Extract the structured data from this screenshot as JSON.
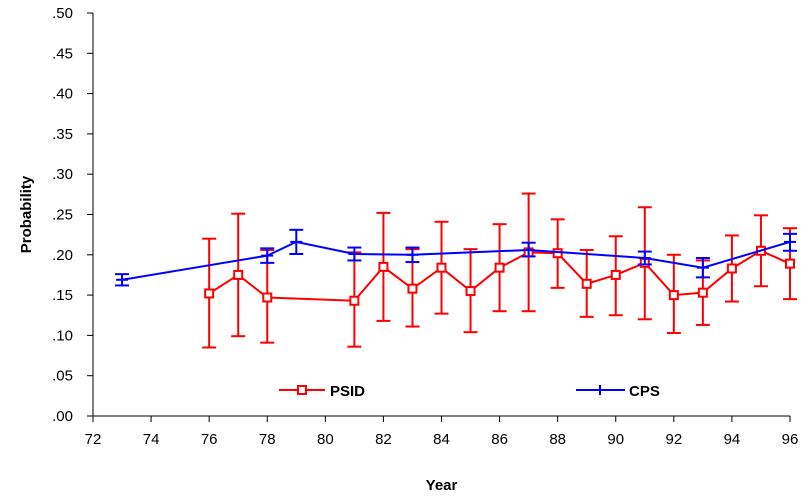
{
  "chart_data": {
    "type": "line",
    "xlabel": "Year",
    "ylabel": "Probability",
    "xlim": [
      72,
      96
    ],
    "ylim": [
      0,
      0.5
    ],
    "x_ticks": [
      "72",
      "74",
      "76",
      "78",
      "80",
      "82",
      "84",
      "86",
      "88",
      "90",
      "92",
      "94",
      "96"
    ],
    "y_ticks": [
      ".00",
      ".05",
      ".10",
      ".15",
      ".20",
      ".25",
      ".30",
      ".35",
      ".40",
      ".45",
      ".50"
    ],
    "grid": false,
    "legend_position": "bottom-inside",
    "series": [
      {
        "name": "PSID",
        "color": "#ff0000",
        "marker": "square-open",
        "x": [
          76,
          77,
          78,
          81,
          82,
          83,
          84,
          85,
          86,
          87,
          88,
          89,
          90,
          91,
          92,
          93,
          94,
          95,
          96
        ],
        "y": [
          0.152,
          0.175,
          0.147,
          0.143,
          0.185,
          0.158,
          0.184,
          0.155,
          0.184,
          0.203,
          0.202,
          0.164,
          0.175,
          0.19,
          0.15,
          0.153,
          0.183,
          0.205,
          0.189
        ],
        "low": [
          0.085,
          0.099,
          0.091,
          0.086,
          0.118,
          0.111,
          0.127,
          0.104,
          0.13,
          0.13,
          0.159,
          0.123,
          0.125,
          0.12,
          0.103,
          0.113,
          0.142,
          0.161,
          0.145
        ],
        "high": [
          0.22,
          0.251,
          0.206,
          0.203,
          0.252,
          0.207,
          0.241,
          0.207,
          0.238,
          0.276,
          0.244,
          0.206,
          0.223,
          0.259,
          0.2,
          0.193,
          0.224,
          0.249,
          0.233
        ]
      },
      {
        "name": "CPS",
        "color": "#0000ff",
        "marker": "dash",
        "x": [
          73,
          78,
          79,
          81,
          83,
          87,
          91,
          93,
          96
        ],
        "y": [
          0.169,
          0.199,
          0.216,
          0.201,
          0.2,
          0.206,
          0.196,
          0.184,
          0.216
        ],
        "low": [
          0.162,
          0.19,
          0.201,
          0.193,
          0.191,
          0.198,
          0.188,
          0.172,
          0.205
        ],
        "high": [
          0.176,
          0.208,
          0.231,
          0.209,
          0.209,
          0.215,
          0.204,
          0.196,
          0.226
        ]
      }
    ]
  }
}
